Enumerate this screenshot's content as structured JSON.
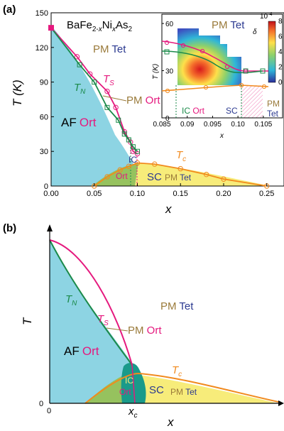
{
  "chart_data": [
    {
      "panel": "(a)",
      "type": "line",
      "material": "BaFe2-xNixAs2",
      "xlabel": "x",
      "ylabel": "T (K)",
      "xlim": [
        0,
        0.27
      ],
      "ylim": [
        0,
        150
      ],
      "xticks": [
        "0.00",
        "0.05",
        "0.10",
        "0.15",
        "0.20",
        "0.25"
      ],
      "yticks": [
        "0",
        "30",
        "60",
        "90",
        "120",
        "150"
      ],
      "series": [
        {
          "name": "Ts",
          "color": "#e5197e",
          "x": [
            0,
            0.03,
            0.045,
            0.065,
            0.075,
            0.085,
            0.092,
            0.095,
            0.1
          ],
          "y": [
            137,
            112,
            97,
            82,
            68,
            47,
            38,
            30,
            28
          ]
        },
        {
          "name": "TN",
          "color": "#1b8a4a",
          "x": [
            0,
            0.033,
            0.05,
            0.065,
            0.078,
            0.085,
            0.09,
            0.095,
            0.1
          ],
          "y": [
            137,
            105,
            90,
            68,
            57,
            45,
            40,
            34,
            30
          ]
        },
        {
          "name": "Tc",
          "color": "#f18a1e",
          "x": [
            0.05,
            0.065,
            0.08,
            0.09,
            0.1,
            0.12,
            0.15,
            0.18,
            0.2,
            0.25
          ],
          "y": [
            0,
            8,
            14,
            17,
            20,
            19,
            15,
            10,
            6,
            0
          ]
        }
      ],
      "region_labels": {
        "af": "AF",
        "ort": "Ort",
        "pm": "PM",
        "tet": "Tet",
        "sc": "SC",
        "ic": "IC",
        "tn": "T",
        "tn_sub": "N",
        "ts": "T",
        "ts_sub": "S",
        "tc": "T",
        "tc_sub": "c"
      },
      "inset": {
        "type": "heatmap",
        "xlabel": "x",
        "ylabel": "T (K)",
        "xlim": [
          0.085,
          0.106
        ],
        "ylim": [
          0,
          65
        ],
        "xticks": [
          "0.085",
          "0.09",
          "0.095",
          "0.10",
          "0.105"
        ],
        "yticks": [
          "0",
          "30",
          "60"
        ],
        "colorbar_label": "δ",
        "colorbar_exponent": "10",
        "colorbar_exponent_power": "-4",
        "colorbar_ticks": [
          "8",
          "6",
          "4",
          "2",
          "0"
        ],
        "colorbar_range": [
          0,
          8
        ]
      }
    },
    {
      "panel": "(b)",
      "type": "area",
      "xlabel": "x",
      "ylabel": "T",
      "x_tick_label": "0",
      "y_tick_label": "0",
      "xc_label": "x",
      "xc_sub": "c"
    }
  ],
  "colors": {
    "af_fill": "#8dd4e3",
    "sc_fill": "#f7ec7a",
    "green_fill": "#96c25e",
    "ts_line": "#e5197e",
    "tn_line": "#1b8a4a",
    "tc_line": "#f18a1e",
    "pm_text": "#9a7a3a",
    "tet_text": "#2b3990",
    "ort_text": "#e5197e",
    "sc_text": "#2b3990",
    "tn_text": "#1b8a4a",
    "tc_text": "#f18a1e"
  }
}
